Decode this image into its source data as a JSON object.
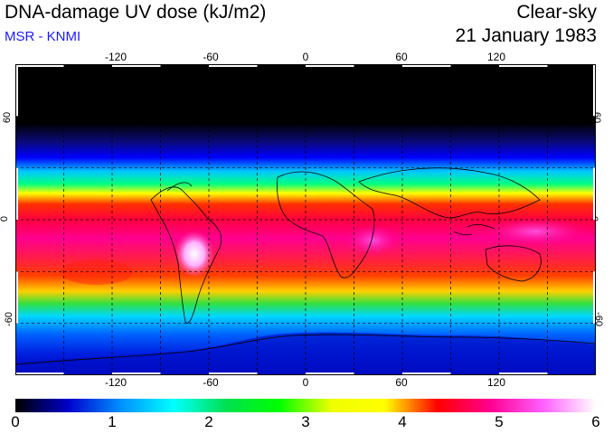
{
  "header": {
    "title": "DNA-damage UV dose (kJ/m2)",
    "subtitle": "MSR - KNMI",
    "mode": "Clear-sky",
    "date": "21 January 1983"
  },
  "map": {
    "projection": "equirectangular",
    "lon_range": [
      -180,
      180
    ],
    "lat_range": [
      -90,
      90
    ],
    "lon_ticks": [
      "-120",
      "-60",
      "0",
      "60",
      "120"
    ],
    "lat_ticks": [
      "60",
      "0",
      "-60"
    ],
    "quantity": "DNA-damage UV dose",
    "unit": "kJ/m2"
  },
  "colorbar": {
    "min": 0,
    "max": 6,
    "labels": [
      "0",
      "1",
      "2",
      "3",
      "4",
      "5",
      "6"
    ],
    "colors": [
      "#000000",
      "#0000cc",
      "#0090ff",
      "#00ffff",
      "#00e050",
      "#00ff00",
      "#f0ff00",
      "#ffff00",
      "#ff0000",
      "#ff0090",
      "#ff60ff",
      "#ffffff"
    ]
  }
}
